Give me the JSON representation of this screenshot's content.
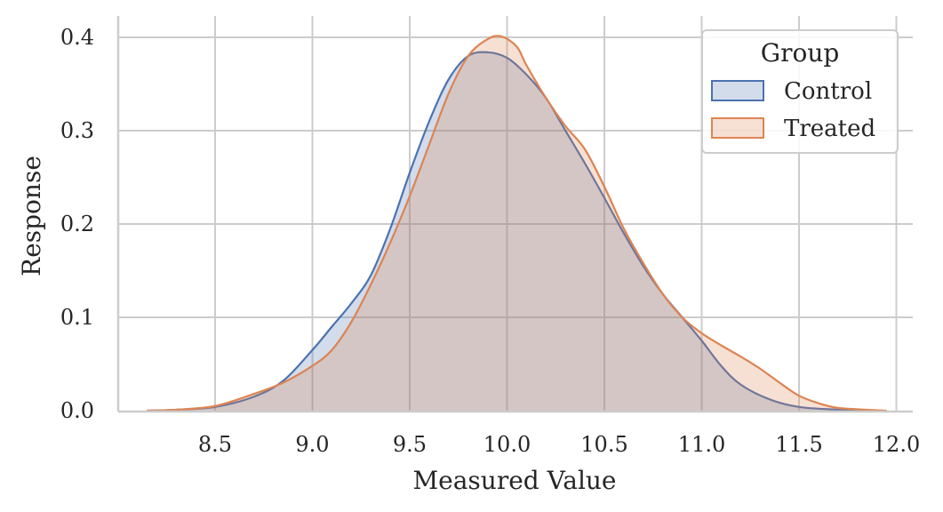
{
  "chart_data": {
    "type": "area",
    "title": "",
    "xlabel": "Measured Value",
    "ylabel": "Response",
    "xlim": [
      8.0,
      12.05
    ],
    "ylim": [
      0,
      0.42
    ],
    "xticks": [
      "8.5",
      "9.0",
      "9.5",
      "10.0",
      "10.5",
      "11.0",
      "11.5",
      "12.0"
    ],
    "yticks": [
      "0.0",
      "0.1",
      "0.2",
      "0.3",
      "0.4"
    ],
    "grid": true,
    "legend": {
      "title": "Group",
      "position": "top-right"
    },
    "series": [
      {
        "name": "Control",
        "color": "#4c72b0",
        "fill": "#4c72b0",
        "fill_opacity": 0.25,
        "x": [
          8.15,
          8.3,
          8.5,
          8.7,
          8.85,
          9.0,
          9.1,
          9.2,
          9.3,
          9.4,
          9.5,
          9.6,
          9.7,
          9.8,
          9.9,
          10.0,
          10.1,
          10.2,
          10.3,
          10.4,
          10.5,
          10.6,
          10.7,
          10.8,
          10.9,
          11.0,
          11.1,
          11.2,
          11.35,
          11.5,
          11.7,
          11.85
        ],
        "y": [
          0.0,
          0.001,
          0.004,
          0.015,
          0.032,
          0.065,
          0.09,
          0.115,
          0.145,
          0.195,
          0.255,
          0.31,
          0.355,
          0.38,
          0.384,
          0.378,
          0.36,
          0.335,
          0.3,
          0.265,
          0.228,
          0.19,
          0.155,
          0.125,
          0.1,
          0.075,
          0.048,
          0.028,
          0.012,
          0.004,
          0.001,
          0.0
        ]
      },
      {
        "name": "Treated",
        "color": "#dd8452",
        "fill": "#dd8452",
        "fill_opacity": 0.25,
        "x": [
          8.15,
          8.3,
          8.5,
          8.7,
          8.85,
          9.0,
          9.1,
          9.2,
          9.3,
          9.4,
          9.5,
          9.6,
          9.7,
          9.8,
          9.9,
          9.97,
          10.05,
          10.1,
          10.2,
          10.3,
          10.4,
          10.5,
          10.6,
          10.7,
          10.8,
          10.9,
          11.0,
          11.1,
          11.2,
          11.3,
          11.4,
          11.5,
          11.6,
          11.7,
          11.85,
          11.95
        ],
        "y": [
          0.0,
          0.001,
          0.005,
          0.018,
          0.03,
          0.048,
          0.065,
          0.095,
          0.135,
          0.18,
          0.23,
          0.285,
          0.34,
          0.38,
          0.398,
          0.401,
          0.39,
          0.37,
          0.335,
          0.305,
          0.28,
          0.24,
          0.195,
          0.158,
          0.125,
          0.1,
          0.083,
          0.07,
          0.058,
          0.045,
          0.03,
          0.016,
          0.008,
          0.003,
          0.001,
          0.0
        ]
      }
    ]
  }
}
